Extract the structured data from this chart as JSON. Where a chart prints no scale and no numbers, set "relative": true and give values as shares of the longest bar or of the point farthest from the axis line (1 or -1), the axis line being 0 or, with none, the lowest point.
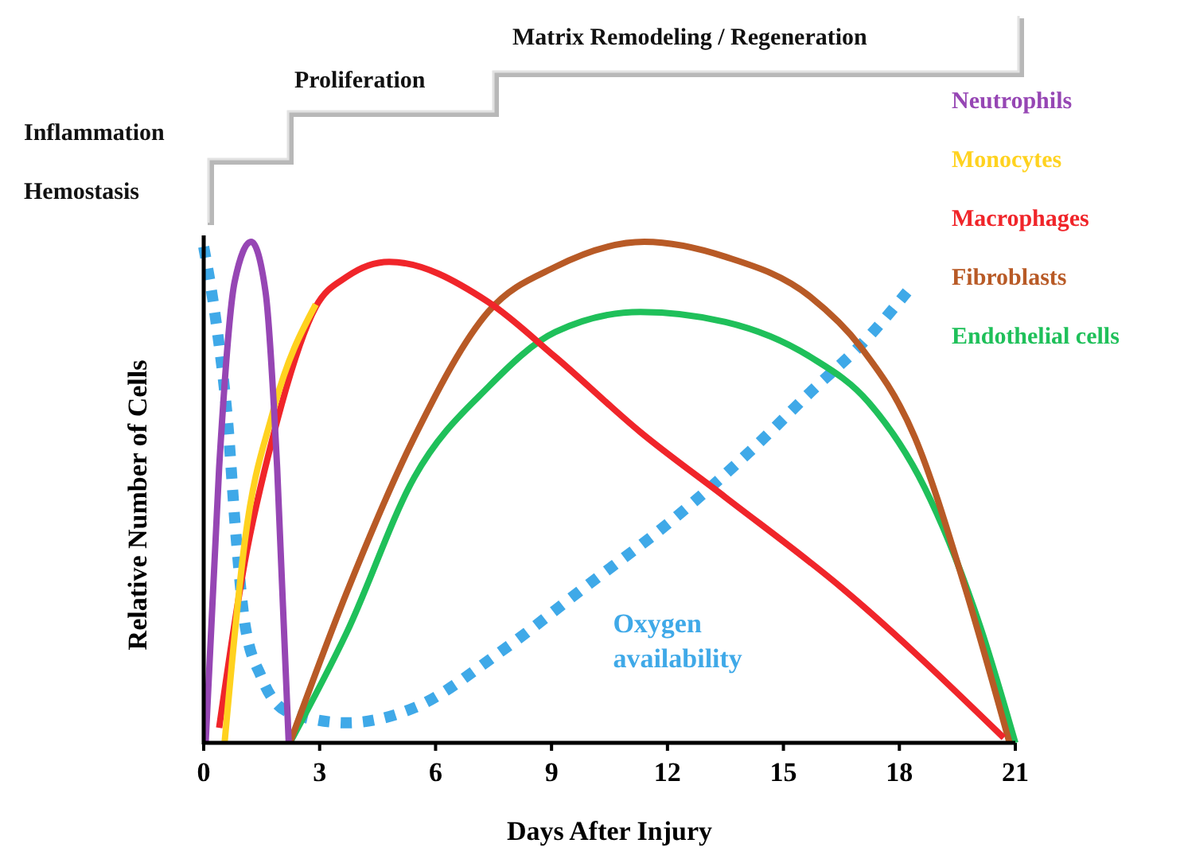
{
  "chart_data": {
    "type": "line",
    "relative": true,
    "xlabel": "Days After Injury",
    "ylabel": "Relative Number of Cells",
    "xlim": [
      0,
      21
    ],
    "xticks": [
      0,
      3,
      6,
      9,
      12,
      15,
      18,
      21
    ],
    "legend": "right",
    "grid": false,
    "marker": "none",
    "annotations": [
      "Hemostasis",
      "Inflammation",
      "Proliferation",
      "Matrix Remodeling / Regeneration"
    ],
    "series": [
      {
        "name": "Neutrophils",
        "color": "#9646b4",
        "x": [
          0.05,
          0.4,
          0.8,
          1.23,
          1.6,
          1.9,
          2.2
        ],
        "values": [
          0,
          0.55,
          0.92,
          1,
          0.9,
          0.55,
          0
        ]
      },
      {
        "name": "Monocytes",
        "color": "#ffd21f",
        "x": [
          0.54,
          1.06,
          1.79,
          2.9
        ],
        "values": [
          0,
          0.4,
          0.66,
          0.875
        ]
      },
      {
        "name": "Macrophages",
        "color": "#f0252a",
        "x": [
          0.4,
          1.06,
          1.79,
          2.9,
          3.7,
          4.8,
          7.36,
          9.1,
          11.3,
          13.5,
          16.5,
          20.7
        ],
        "values": [
          0.03,
          0.36,
          0.61,
          0.87,
          0.93,
          0.96,
          0.88,
          0.77,
          0.62,
          0.49,
          0.31,
          0.01
        ]
      },
      {
        "name": "Fibroblasts",
        "color": "#b85a26",
        "x": [
          2.23,
          3.7,
          5.45,
          7.36,
          9.1,
          11.4,
          13.5,
          15.7,
          17,
          18.4,
          19.7,
          20.85
        ],
        "values": [
          0,
          0.3,
          0.61,
          0.86,
          0.95,
          1,
          0.97,
          0.89,
          0.79,
          0.61,
          0.31,
          0
        ]
      },
      {
        "name": "Endothelial cells",
        "color": "#1fc05a",
        "x": [
          2.23,
          3.7,
          5.45,
          7.36,
          9.1,
          11.3,
          13.5,
          15.7,
          17.2,
          18.65,
          20.1,
          21
        ],
        "values": [
          0,
          0.22,
          0.53,
          0.71,
          0.82,
          0.86,
          0.84,
          0.77,
          0.68,
          0.51,
          0.23,
          0
        ]
      },
      {
        "name": "Oxygen availability",
        "color": "#3fa9e8",
        "line_style": "dotted",
        "x": [
          0,
          0.32,
          0.62,
          0.84,
          1.06,
          1.5,
          2.23,
          3.7,
          5.45,
          7.65,
          9.85,
          12.05,
          14.25,
          15.7,
          17.2,
          18.2
        ],
        "values": [
          0.99,
          0.84,
          0.64,
          0.41,
          0.24,
          0.13,
          0.06,
          0.04,
          0.07,
          0.18,
          0.31,
          0.44,
          0.59,
          0.7,
          0.81,
          0.9
        ]
      }
    ]
  }
}
